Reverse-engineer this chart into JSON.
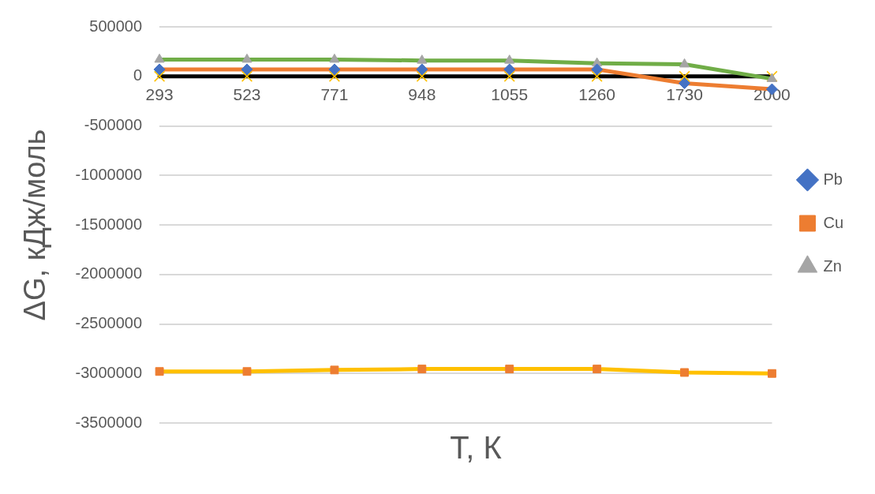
{
  "chart_data": {
    "type": "line",
    "xlabel": "T, К",
    "ylabel": "ΔG, кДж/моль",
    "categories": [
      "293",
      "523",
      "771",
      "948",
      "1055",
      "1260",
      "1730",
      "2000"
    ],
    "series": [
      {
        "name": "Pb",
        "color": "#ed7d31",
        "marker": "diamond",
        "colors": [
          "#4472c4",
          "#4472c4",
          "#4472c4",
          "#4472c4",
          "#4472c4",
          "#4472c4",
          "#4472c4",
          "#4472c4"
        ],
        "values": [
          70000,
          70000,
          70000,
          70000,
          70000,
          70000,
          -70000,
          -130000
        ]
      },
      {
        "name": "Cu",
        "color": "#ffc000",
        "marker": "square",
        "colors": [
          "#ed7d31",
          "#ed7d31",
          "#ed7d31",
          "#ed7d31",
          "#ed7d31",
          "#ed7d31",
          "#ed7d31",
          "#ed7d31"
        ],
        "values": [
          -2980000,
          -2980000,
          -2965000,
          -2955000,
          -2955000,
          -2955000,
          -2990000,
          -3000000
        ]
      },
      {
        "name": "Zn",
        "color": "#70ad47",
        "marker": "triangle",
        "colors": [
          "#a5a5a5",
          "#a5a5a5",
          "#a5a5a5",
          "#a5a5a5",
          "#a5a5a5",
          "#a5a5a5",
          "#a5a5a5",
          "#a5a5a5"
        ],
        "values": [
          170000,
          170000,
          170000,
          160000,
          160000,
          132000,
          122000,
          -25000
        ]
      },
      {
        "color": "#000000",
        "marker": "cross",
        "colors": [
          "#ffc000",
          "#ffc000",
          "#ffc000",
          "#ffc000",
          "#ffc000",
          "#ffc000",
          "#ffc000",
          "#ffc000"
        ],
        "values": [
          0,
          0,
          0,
          0,
          0,
          0,
          0,
          0
        ]
      }
    ],
    "ylim": [
      -3500000,
      500000
    ],
    "yticks": [
      -3500000,
      -3000000,
      -2500000,
      -2000000,
      -1500000,
      -1000000,
      -500000,
      0,
      500000
    ],
    "grid": "y",
    "legend": "right"
  }
}
